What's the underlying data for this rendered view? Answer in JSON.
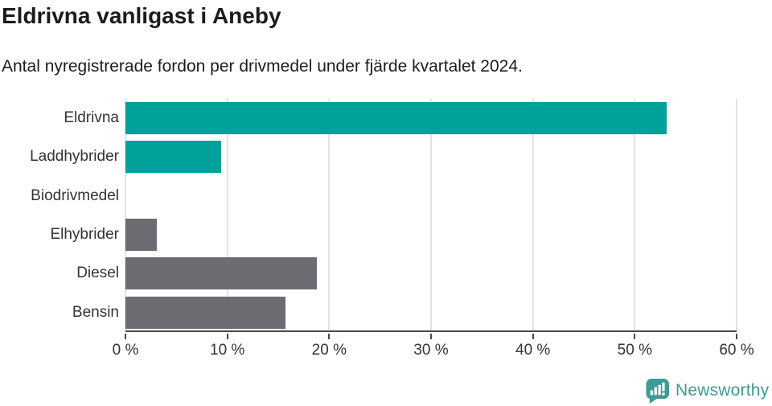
{
  "chart_data": {
    "type": "bar",
    "orientation": "horizontal",
    "title": "Eldrivna vanligast i Aneby",
    "subtitle": "Antal nyregistrerade fordon per drivmedel under fjärde kvartalet 2024.",
    "categories": [
      "Eldrivna",
      "Laddhybrider",
      "Biodrivmedel",
      "Elhybrider",
      "Diesel",
      "Bensin"
    ],
    "values": [
      53.1,
      9.4,
      0,
      3.1,
      18.8,
      15.7
    ],
    "unit": "%",
    "xlabel": "",
    "ylabel": "",
    "xlim": [
      0,
      60
    ],
    "x_ticks": [
      "0 %",
      "10 %",
      "20 %",
      "30 %",
      "40 %",
      "50 %",
      "60 %"
    ],
    "grid": true,
    "legend": false,
    "bar_colors": [
      "#00A19A",
      "#00A19A",
      "#00A19A",
      "#6C6C72",
      "#6C6C72",
      "#6C6C72"
    ],
    "colors": {
      "teal": "#00A19A",
      "gray": "#6C6C72",
      "gridline": "#E2E2E2",
      "axis": "#4A4A4A",
      "label_text": "#333333",
      "title_text": "#1C1C1C"
    }
  },
  "branding": {
    "label": "Newsworthy",
    "color": "#3D9A94"
  }
}
